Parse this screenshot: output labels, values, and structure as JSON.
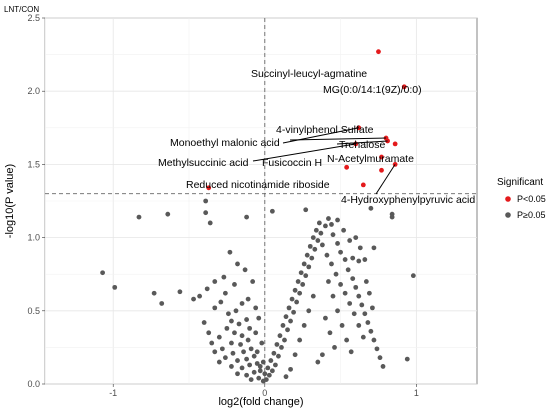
{
  "chart_data": {
    "type": "scatter",
    "title": "LNT/CON",
    "xlabel": "log2(fold change)",
    "ylabel": "-log10(P value)",
    "xlim": [
      -1.45,
      1.4
    ],
    "ylim": [
      0,
      2.5
    ],
    "x_ticks": [
      -1,
      0,
      1
    ],
    "x_tick_labels": [
      "-1",
      "0",
      "1"
    ],
    "y_ticks": [
      0.0,
      0.5,
      1.0,
      1.5,
      2.0,
      2.5
    ],
    "y_tick_labels": [
      "0.0",
      "0.5",
      "1.0",
      "1.5",
      "2.0",
      "2.5"
    ],
    "grid": true,
    "threshold_lines": {
      "x": 0,
      "y": 1.3
    },
    "legend": {
      "title": "Significant",
      "position": "right",
      "entries": [
        {
          "label": "P<0.05",
          "color": "#e41a1c"
        },
        {
          "label": "P≥0.05",
          "color": "#595959"
        }
      ]
    },
    "series": [
      {
        "name": "P<0.05",
        "color": "#e41a1c",
        "points": [
          {
            "x": 0.75,
            "y": 2.27
          },
          {
            "x": 0.92,
            "y": 2.03
          },
          {
            "x": 0.62,
            "y": 1.75
          },
          {
            "x": 0.8,
            "y": 1.68
          },
          {
            "x": 0.81,
            "y": 1.66
          },
          {
            "x": 0.6,
            "y": 1.64
          },
          {
            "x": 0.86,
            "y": 1.64
          },
          {
            "x": 0.77,
            "y": 1.55
          },
          {
            "x": 0.54,
            "y": 1.48
          },
          {
            "x": 0.77,
            "y": 1.46
          },
          {
            "x": 0.86,
            "y": 1.5
          },
          {
            "x": -0.37,
            "y": 1.34
          },
          {
            "x": 0.65,
            "y": 1.36
          }
        ]
      },
      {
        "name": "P≥0.05",
        "color": "#595959",
        "points": [
          {
            "x": -1.07,
            "y": 0.76
          },
          {
            "x": -0.99,
            "y": 0.66
          },
          {
            "x": -0.83,
            "y": 1.14
          },
          {
            "x": -0.73,
            "y": 0.62
          },
          {
            "x": -0.68,
            "y": 0.55
          },
          {
            "x": -0.56,
            "y": 0.63
          },
          {
            "x": -0.47,
            "y": 0.58
          },
          {
            "x": -0.43,
            "y": 0.6
          },
          {
            "x": -0.38,
            "y": 0.65
          },
          {
            "x": -0.64,
            "y": 1.16
          },
          {
            "x": -0.39,
            "y": 1.25
          },
          {
            "x": -0.39,
            "y": 1.17
          },
          {
            "x": -0.36,
            "y": 1.1
          },
          {
            "x": -0.12,
            "y": 1.14
          },
          {
            "x": 0.05,
            "y": 1.18
          },
          {
            "x": 0.27,
            "y": 1.19
          },
          {
            "x": 0.84,
            "y": 1.16
          },
          {
            "x": 0.84,
            "y": 1.14
          },
          {
            "x": 0.7,
            "y": 1.2
          },
          {
            "x": 0.72,
            "y": 0.93
          },
          {
            "x": 0.66,
            "y": 0.85
          },
          {
            "x": 0.62,
            "y": 0.84
          },
          {
            "x": 0.98,
            "y": 0.74
          },
          {
            "x": 0.94,
            "y": 0.17
          },
          {
            "x": -0.33,
            "y": 0.7
          },
          {
            "x": -0.27,
            "y": 0.73
          },
          {
            "x": -0.26,
            "y": 0.62
          },
          {
            "x": -0.2,
            "y": 0.68
          },
          {
            "x": -0.29,
            "y": 0.56
          },
          {
            "x": -0.33,
            "y": 0.52
          },
          {
            "x": -0.24,
            "y": 0.48
          },
          {
            "x": -0.19,
            "y": 0.5
          },
          {
            "x": -0.15,
            "y": 0.55
          },
          {
            "x": -0.11,
            "y": 0.58
          },
          {
            "x": -0.22,
            "y": 0.43
          },
          {
            "x": -0.17,
            "y": 0.41
          },
          {
            "x": -0.12,
            "y": 0.44
          },
          {
            "x": -0.25,
            "y": 0.38
          },
          {
            "x": -0.2,
            "y": 0.35
          },
          {
            "x": -0.15,
            "y": 0.33
          },
          {
            "x": -0.1,
            "y": 0.38
          },
          {
            "x": -0.3,
            "y": 0.32
          },
          {
            "x": -0.22,
            "y": 0.28
          },
          {
            "x": -0.16,
            "y": 0.27
          },
          {
            "x": -0.11,
            "y": 0.3
          },
          {
            "x": -0.28,
            "y": 0.24
          },
          {
            "x": -0.21,
            "y": 0.21
          },
          {
            "x": -0.14,
            "y": 0.22
          },
          {
            "x": -0.09,
            "y": 0.24
          },
          {
            "x": -0.26,
            "y": 0.18
          },
          {
            "x": -0.18,
            "y": 0.16
          },
          {
            "x": -0.12,
            "y": 0.17
          },
          {
            "x": -0.07,
            "y": 0.19
          },
          {
            "x": -0.22,
            "y": 0.12
          },
          {
            "x": -0.15,
            "y": 0.11
          },
          {
            "x": -0.1,
            "y": 0.13
          },
          {
            "x": -0.05,
            "y": 0.14
          },
          {
            "x": -0.18,
            "y": 0.07
          },
          {
            "x": -0.12,
            "y": 0.06
          },
          {
            "x": -0.07,
            "y": 0.08
          },
          {
            "x": -0.03,
            "y": 0.09
          },
          {
            "x": -0.09,
            "y": 0.03
          },
          {
            "x": -0.04,
            "y": 0.04
          },
          {
            "x": -0.01,
            "y": 0.02
          },
          {
            "x": -0.3,
            "y": 0.15
          },
          {
            "x": -0.33,
            "y": 0.22
          },
          {
            "x": -0.35,
            "y": 0.28
          },
          {
            "x": -0.37,
            "y": 0.35
          },
          {
            "x": -0.4,
            "y": 0.42
          },
          {
            "x": -0.23,
            "y": 0.9
          },
          {
            "x": -0.18,
            "y": 0.82
          },
          {
            "x": -0.13,
            "y": 0.78
          },
          {
            "x": -0.08,
            "y": 0.7
          },
          {
            "x": -0.06,
            "y": 0.52
          },
          {
            "x": -0.04,
            "y": 0.45
          },
          {
            "x": -0.06,
            "y": 0.35
          },
          {
            "x": -0.02,
            "y": 0.28
          },
          {
            "x": -0.05,
            "y": 0.22
          },
          {
            "x": 0.01,
            "y": 0.03
          },
          {
            "x": 0.03,
            "y": 0.06
          },
          {
            "x": 0.02,
            "y": 0.11
          },
          {
            "x": 0.05,
            "y": 0.09
          },
          {
            "x": 0.04,
            "y": 0.16
          },
          {
            "x": 0.07,
            "y": 0.13
          },
          {
            "x": 0.06,
            "y": 0.21
          },
          {
            "x": 0.09,
            "y": 0.19
          },
          {
            "x": 0.08,
            "y": 0.27
          },
          {
            "x": 0.11,
            "y": 0.25
          },
          {
            "x": 0.1,
            "y": 0.33
          },
          {
            "x": 0.13,
            "y": 0.3
          },
          {
            "x": 0.12,
            "y": 0.4
          },
          {
            "x": 0.15,
            "y": 0.37
          },
          {
            "x": 0.14,
            "y": 0.46
          },
          {
            "x": 0.17,
            "y": 0.43
          },
          {
            "x": 0.16,
            "y": 0.52
          },
          {
            "x": 0.19,
            "y": 0.49
          },
          {
            "x": 0.18,
            "y": 0.58
          },
          {
            "x": 0.21,
            "y": 0.56
          },
          {
            "x": 0.2,
            "y": 0.64
          },
          {
            "x": 0.23,
            "y": 0.62
          },
          {
            "x": 0.22,
            "y": 0.7
          },
          {
            "x": 0.25,
            "y": 0.68
          },
          {
            "x": 0.24,
            "y": 0.76
          },
          {
            "x": 0.27,
            "y": 0.74
          },
          {
            "x": 0.26,
            "y": 0.82
          },
          {
            "x": 0.29,
            "y": 0.8
          },
          {
            "x": 0.28,
            "y": 0.88
          },
          {
            "x": 0.31,
            "y": 0.86
          },
          {
            "x": 0.3,
            "y": 0.94
          },
          {
            "x": 0.33,
            "y": 0.92
          },
          {
            "x": 0.32,
            "y": 1.0
          },
          {
            "x": 0.35,
            "y": 0.98
          },
          {
            "x": 0.34,
            "y": 1.05
          },
          {
            "x": 0.37,
            "y": 1.03
          },
          {
            "x": 0.36,
            "y": 1.1
          },
          {
            "x": 0.4,
            "y": 1.08
          },
          {
            "x": 0.42,
            "y": 1.13
          },
          {
            "x": 0.45,
            "y": 1.02
          },
          {
            "x": 0.48,
            "y": 0.96
          },
          {
            "x": 0.5,
            "y": 0.9
          },
          {
            "x": 0.53,
            "y": 0.85
          },
          {
            "x": 0.55,
            "y": 0.78
          },
          {
            "x": 0.58,
            "y": 0.72
          },
          {
            "x": 0.6,
            "y": 0.66
          },
          {
            "x": 0.62,
            "y": 0.6
          },
          {
            "x": 0.64,
            "y": 0.54
          },
          {
            "x": 0.66,
            "y": 0.48
          },
          {
            "x": 0.68,
            "y": 0.42
          },
          {
            "x": 0.7,
            "y": 0.36
          },
          {
            "x": 0.72,
            "y": 0.3
          },
          {
            "x": 0.74,
            "y": 0.24
          },
          {
            "x": 0.76,
            "y": 0.18
          },
          {
            "x": 0.78,
            "y": 0.12
          },
          {
            "x": 0.38,
            "y": 0.95
          },
          {
            "x": 0.41,
            "y": 0.88
          },
          {
            "x": 0.44,
            "y": 0.82
          },
          {
            "x": 0.47,
            "y": 0.75
          },
          {
            "x": 0.5,
            "y": 0.68
          },
          {
            "x": 0.53,
            "y": 0.62
          },
          {
            "x": 0.56,
            "y": 0.55
          },
          {
            "x": 0.59,
            "y": 0.48
          },
          {
            "x": 0.62,
            "y": 0.4
          },
          {
            "x": 0.65,
            "y": 0.32
          },
          {
            "x": 0.42,
            "y": 0.7
          },
          {
            "x": 0.45,
            "y": 0.6
          },
          {
            "x": 0.48,
            "y": 0.5
          },
          {
            "x": 0.51,
            "y": 0.4
          },
          {
            "x": 0.54,
            "y": 0.3
          },
          {
            "x": 0.57,
            "y": 0.22
          },
          {
            "x": 0.4,
            "y": 0.45
          },
          {
            "x": 0.43,
            "y": 0.35
          },
          {
            "x": 0.46,
            "y": 0.25
          },
          {
            "x": 0.38,
            "y": 0.2
          },
          {
            "x": 0.35,
            "y": 0.15
          },
          {
            "x": 0.32,
            "y": 0.6
          },
          {
            "x": 0.29,
            "y": 0.5
          },
          {
            "x": 0.26,
            "y": 0.4
          },
          {
            "x": 0.23,
            "y": 0.3
          },
          {
            "x": 0.2,
            "y": 0.2
          },
          {
            "x": 0.17,
            "y": 0.1
          },
          {
            "x": 0.14,
            "y": 0.05
          },
          {
            "x": 0.52,
            "y": 1.05
          },
          {
            "x": 0.56,
            "y": 0.98
          },
          {
            "x": 0.6,
            "y": 1.0
          },
          {
            "x": 0.63,
            "y": 0.93
          },
          {
            "x": 0.58,
            "y": 0.86
          },
          {
            "x": 0.67,
            "y": 0.7
          },
          {
            "x": 0.69,
            "y": 0.62
          },
          {
            "x": 0.71,
            "y": 0.52
          },
          {
            "x": 0.48,
            "y": 1.12
          },
          {
            "x": 0.44,
            "y": 1.09
          },
          {
            "x": -0.01,
            "y": 0.15
          },
          {
            "x": -0.03,
            "y": 0.12
          },
          {
            "x": 0.0,
            "y": 0.07
          }
        ]
      }
    ],
    "annotations": [
      {
        "text": "Succinyl-leucyl-agmatine"
      },
      {
        "text": "MG(0:0/14:1(9Z)/0:0)"
      },
      {
        "text": "4-vinylphenol Sulfate"
      },
      {
        "text": "Monoethyl malonic acid"
      },
      {
        "text": "Trehalose"
      },
      {
        "text": "Methylsuccinic acid"
      },
      {
        "text": "Fusicoccin H"
      },
      {
        "text": "N-Acetylmuramate"
      },
      {
        "text": "Reduced nicotinamide riboside"
      },
      {
        "text": "4-Hydroxyphenylpyruvic acid"
      }
    ]
  }
}
